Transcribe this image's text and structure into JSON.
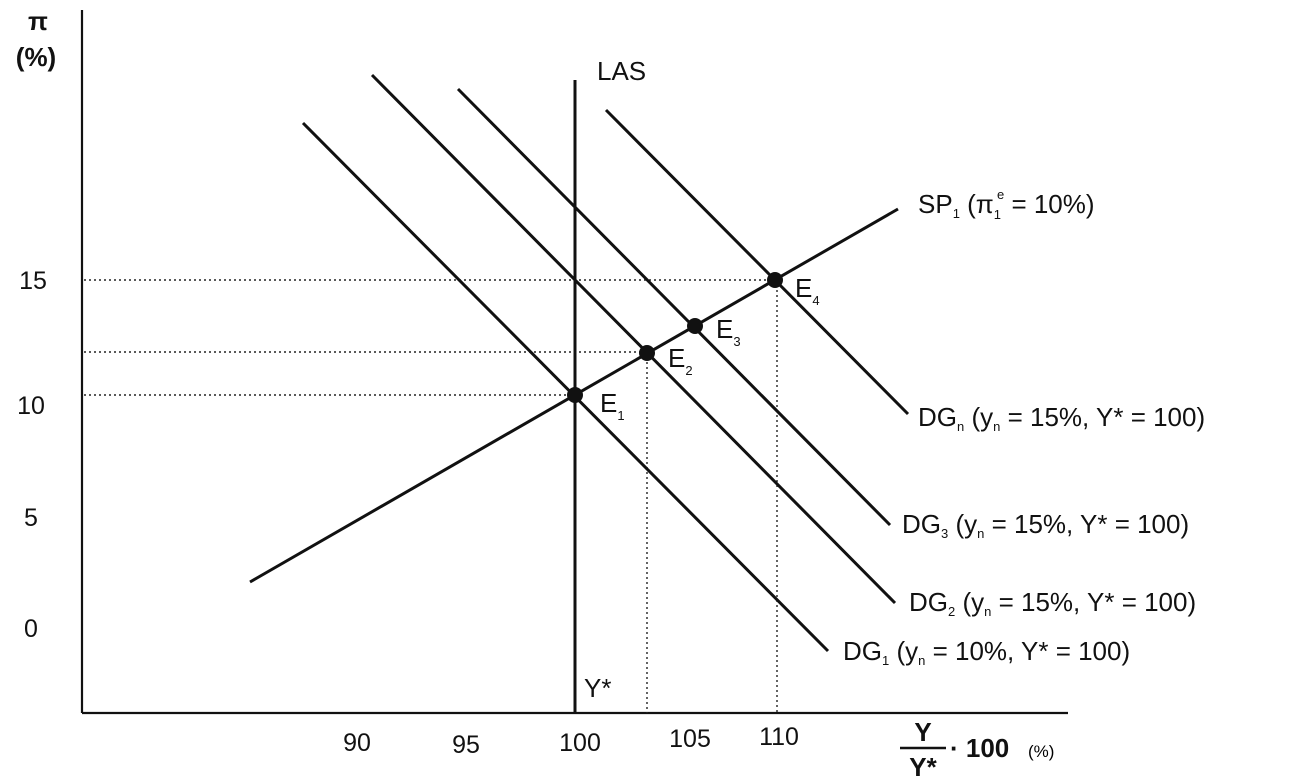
{
  "y_axis": {
    "symbol": "π",
    "unit": "(%)",
    "ticks": [
      "15",
      "10",
      "5",
      "0"
    ]
  },
  "x_axis": {
    "ticks": [
      "90",
      "95",
      "100",
      "105",
      "110"
    ],
    "fraction_top": "Y",
    "fraction_bottom": "Y*",
    "multiplier": "· 100",
    "unit": "(%)"
  },
  "curves": {
    "las": {
      "label": "LAS",
      "bottom_label": "Y*"
    },
    "sp1": {
      "base": "SP",
      "sub": "1",
      "open": " (π",
      "pi_sub": "1",
      "pi_sup": "e",
      "close": " = 10%)"
    },
    "dgn": {
      "base": "DG",
      "sub": "n",
      "p1": " (y",
      "ysub": "n",
      "p2": " = 15%, Y* = 100)"
    },
    "dg3": {
      "base": "DG",
      "sub": "3",
      "p1": " (y",
      "ysub": "n",
      "p2": " = 15%, Y* = 100)"
    },
    "dg2": {
      "base": "DG",
      "sub": "2",
      "p1": " (y",
      "ysub": "n",
      "p2": " = 15%, Y* = 100)"
    },
    "dg1": {
      "base": "DG",
      "sub": "1",
      "p1": " (y",
      "ysub": "n",
      "p2": " = 10%, Y* = 100)"
    }
  },
  "points": {
    "e1": {
      "base": "E",
      "sub": "1"
    },
    "e2": {
      "base": "E",
      "sub": "2"
    },
    "e3": {
      "base": "E",
      "sub": "3"
    },
    "e4": {
      "base": "E",
      "sub": "4"
    }
  }
}
